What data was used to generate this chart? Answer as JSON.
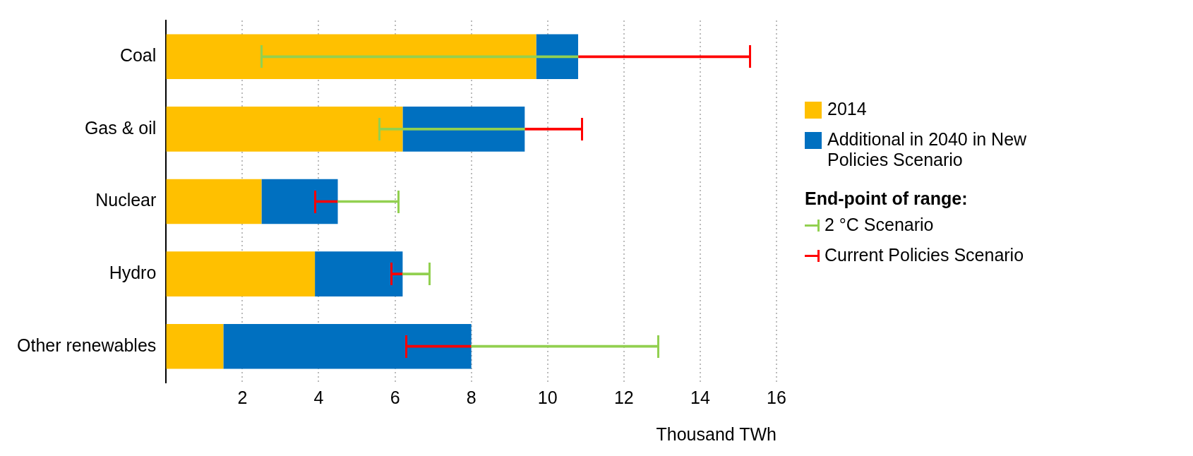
{
  "chart_data": {
    "type": "bar",
    "orientation": "horizontal",
    "stacked": true,
    "categories": [
      "Coal",
      "Gas & oil",
      "Nuclear",
      "Hydro",
      "Other renewables"
    ],
    "series": [
      {
        "name": "2014",
        "color": "#ffc000",
        "values": [
          9.7,
          6.2,
          2.5,
          3.9,
          1.5
        ]
      },
      {
        "name": "Additional in 2040 in New Policies Scenario",
        "color": "#0070c0",
        "values": [
          1.1,
          3.2,
          2.0,
          2.3,
          6.5
        ]
      },
      {
        "name": "2 °C Scenario",
        "color": "#92d050",
        "base": [
          10.8,
          9.4,
          4.5,
          6.2,
          8.0
        ],
        "values": [
          -8.3,
          -3.8,
          1.6,
          0.7,
          4.9
        ]
      },
      {
        "name": "Current Policies Scenario",
        "color": "#ff0000",
        "base": [
          10.8,
          9.4,
          4.5,
          6.2,
          8.0
        ],
        "values": [
          4.5,
          1.5,
          -0.6,
          -0.3,
          -1.7
        ]
      }
    ],
    "xlabel": "Thousand TWh",
    "xlim": [
      0,
      16
    ],
    "xticks": [
      2,
      4,
      6,
      8,
      10,
      12,
      14,
      16
    ],
    "grid": "x",
    "legend": "right",
    "legend_title": "End-point of range:"
  }
}
